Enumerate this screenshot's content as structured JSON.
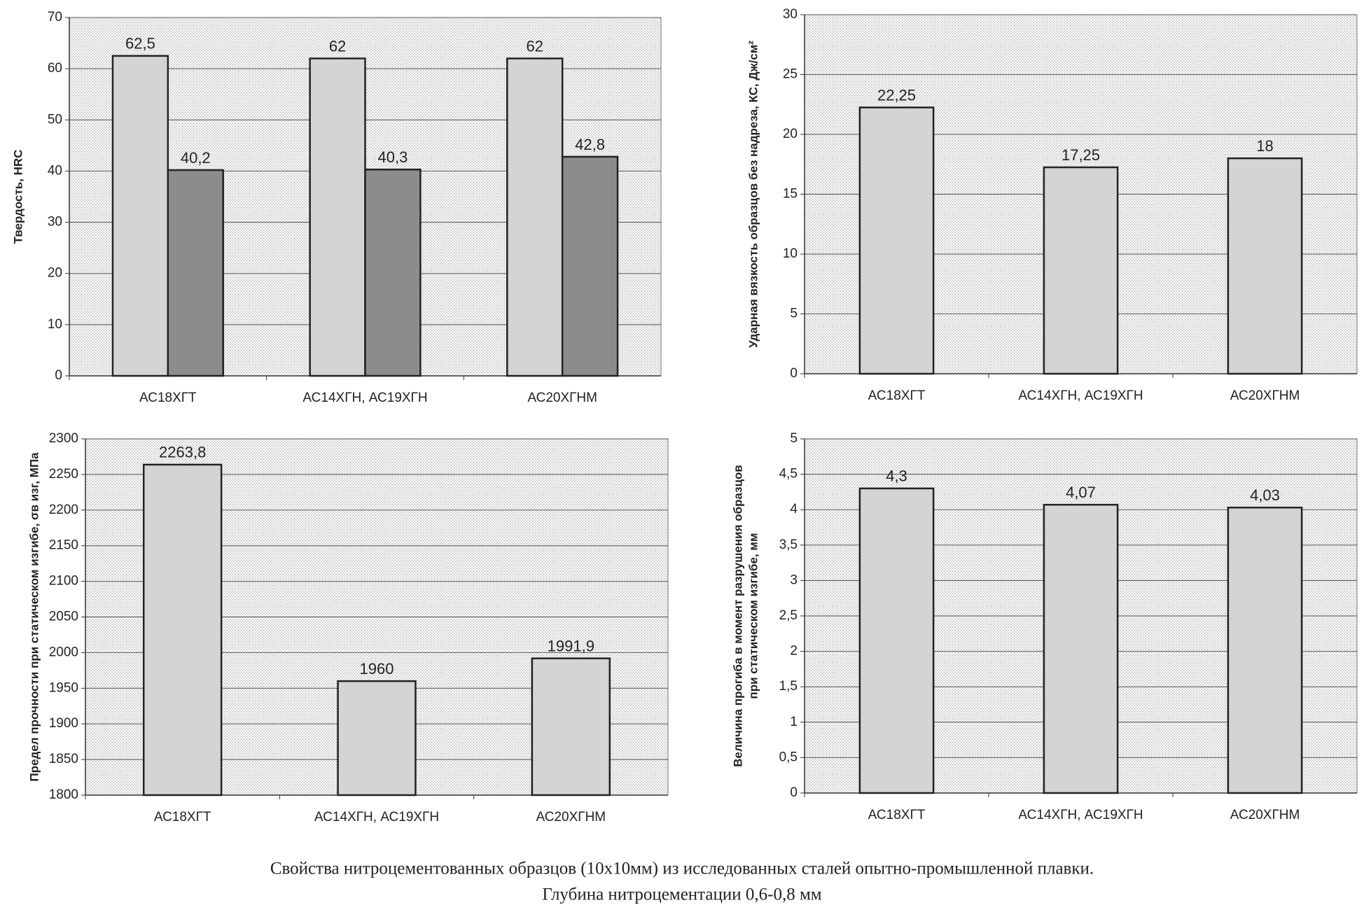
{
  "chart_data": [
    {
      "type": "bar",
      "ylabel": [
        "Твердость, HRC"
      ],
      "categories": [
        "АС18ХГТ",
        "АС14ХГН,  АС19ХГН",
        "АС20ХГНМ"
      ],
      "series": [
        {
          "color": "#d4d4d4",
          "values": [
            62.5,
            62,
            62
          ],
          "value_labels": [
            "62,5",
            "62",
            "62"
          ]
        },
        {
          "color": "#8c8c8c",
          "values": [
            40.2,
            40.3,
            42.8
          ],
          "value_labels": [
            "40,2",
            "40,3",
            "42,8"
          ]
        }
      ],
      "ylim": [
        0,
        70
      ],
      "yticks": [
        0,
        10,
        20,
        30,
        40,
        50,
        60,
        70
      ],
      "grid": true
    },
    {
      "type": "bar",
      "ylabel": [
        "Ударная вязкость образцов без надреза, КС, Дж/см²"
      ],
      "categories": [
        "АС18ХГТ",
        "АС14ХГН, АС19ХГН",
        "АС20ХГНМ"
      ],
      "series": [
        {
          "color": "#d4d4d4",
          "values": [
            22.25,
            17.25,
            18
          ],
          "value_labels": [
            "22,25",
            "17,25",
            "18"
          ]
        }
      ],
      "ylim": [
        0,
        30
      ],
      "yticks": [
        0,
        5,
        10,
        15,
        20,
        25,
        30
      ],
      "grid": true
    },
    {
      "type": "bar",
      "ylabel": [
        "Предел прочности при статическом изгибе, σв изг, МПа"
      ],
      "categories": [
        "АС18ХГТ",
        "АС14ХГН, АС19ХГН",
        "АС20ХГНМ"
      ],
      "series": [
        {
          "color": "#d4d4d4",
          "values": [
            2263.8,
            1960,
            1991.9
          ],
          "value_labels": [
            "2263,8",
            "1960",
            "1991,9"
          ]
        }
      ],
      "ylim": [
        1800,
        2300
      ],
      "yticks": [
        1800,
        1850,
        1900,
        1950,
        2000,
        2050,
        2100,
        2150,
        2200,
        2250,
        2300
      ],
      "grid": true
    },
    {
      "type": "bar",
      "ylabel": [
        "Величина прогиба в момент разрушения образцов",
        "при статическом изгибе, мм"
      ],
      "categories": [
        "АС18ХГТ",
        "АС14ХГН, АС19ХГН",
        "АС20ХГНМ"
      ],
      "series": [
        {
          "color": "#d4d4d4",
          "values": [
            4.3,
            4.07,
            4.03
          ],
          "value_labels": [
            "4,3",
            "4,07",
            "4,03"
          ]
        }
      ],
      "ylim": [
        0,
        5
      ],
      "yticks": [
        0,
        {
          "value": 0.5,
          "label": "0,5"
        },
        1,
        {
          "value": 1.5,
          "label": "1,5"
        },
        2,
        {
          "value": 2.5,
          "label": "2,5"
        },
        3,
        {
          "value": 3.5,
          "label": "3,5"
        },
        4,
        {
          "value": 4.5,
          "label": "4,5"
        },
        5
      ],
      "grid": true
    }
  ],
  "caption": [
    "Свойства нитроцементованных образцов (10х10мм) из исследованных сталей опытно-промышленной плавки.",
    "Глубина нитроцементации 0,6-0,8 мм"
  ]
}
